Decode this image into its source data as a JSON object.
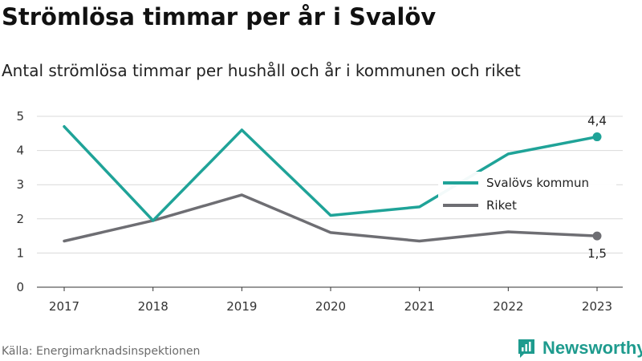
{
  "header": {
    "title": "Strömlösa timmar per år i Svalöv",
    "subtitle": "Antal strömlösa timmar per hushåll och år i kommunen och riket"
  },
  "footer": {
    "source": "Källa: Energimarknadsinspektionen",
    "brand": "Newsworthy"
  },
  "colors": {
    "svalov": "#1fa398",
    "riket": "#6e6e73",
    "grid": "#d9d9d9",
    "brand": "#1e9b8e"
  },
  "chart_data": {
    "type": "line",
    "title": "Strömlösa timmar per år i Svalöv",
    "subtitle": "Antal strömlösa timmar per hushåll och år i kommunen och riket",
    "categories": [
      "2017",
      "2018",
      "2019",
      "2020",
      "2021",
      "2022",
      "2023"
    ],
    "ylim": [
      0,
      5
    ],
    "yticks": [
      "0",
      "1",
      "2",
      "3",
      "4",
      "5"
    ],
    "grid": true,
    "legend_position": "right",
    "series": [
      {
        "name": "Svalövs kommun",
        "values": [
          4.7,
          1.95,
          4.6,
          2.1,
          2.35,
          3.9,
          4.4
        ],
        "end_label": "4,4",
        "color": "#1fa398"
      },
      {
        "name": "Riket",
        "values": [
          1.35,
          1.95,
          2.7,
          1.6,
          1.35,
          1.62,
          1.5
        ],
        "end_label": "1,5",
        "color": "#6e6e73"
      }
    ]
  }
}
